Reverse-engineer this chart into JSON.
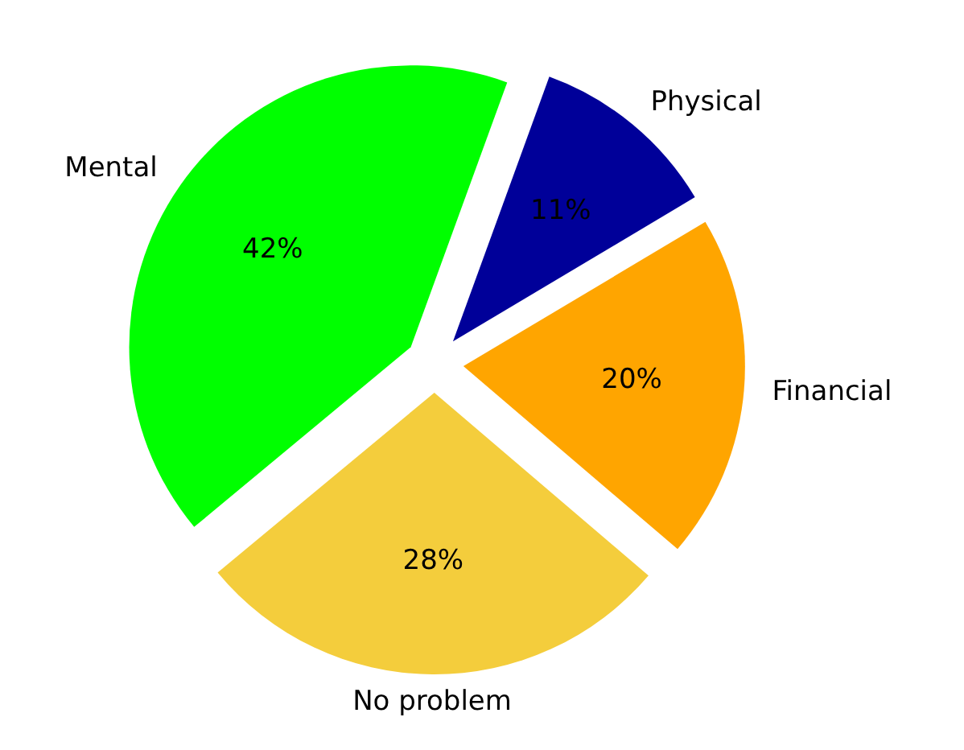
{
  "chart_data": {
    "type": "pie",
    "categories": [
      "Physical",
      "Financial",
      "No problem",
      "Mental"
    ],
    "values": [
      11,
      20,
      28,
      42
    ],
    "colors": [
      "#000099",
      "#ffa500",
      "#f4cd3c",
      "#00ff00"
    ],
    "value_labels": [
      "11%",
      "20%",
      "28%",
      "42%"
    ]
  }
}
